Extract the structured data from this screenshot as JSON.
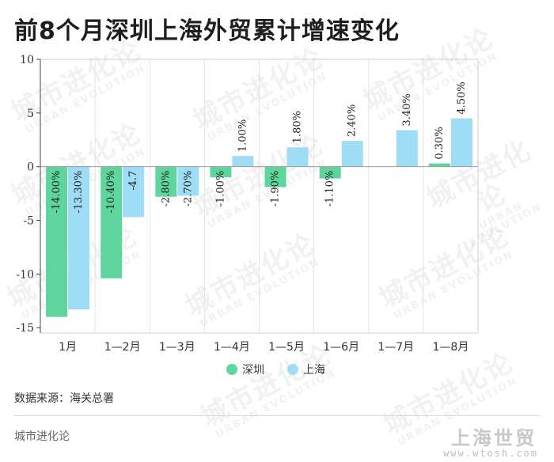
{
  "title": "前8个月深圳上海外贸累计增速变化",
  "source": "数据来源：海关总署",
  "brand": "城市进化论",
  "site_logo": "上海世贸",
  "site_url": "www.wtosh.com",
  "watermark": {
    "cn": "城市进化论",
    "en": "URBAN EVOLUTION"
  },
  "chart_data": {
    "type": "bar",
    "categories": [
      "1月",
      "1—2月",
      "1—3月",
      "1—4月",
      "1—5月",
      "1—6月",
      "1—7月",
      "1—8月"
    ],
    "series": [
      {
        "name": "深圳",
        "color": "#5fd59e",
        "values": [
          -14.0,
          -10.4,
          -2.8,
          -1.0,
          -1.9,
          -1.1,
          0,
          0.3
        ],
        "labels": [
          "-14.00%",
          "-10.40%",
          "-2.80%",
          "-1.00%",
          "-1.90%",
          "-1.10%",
          "",
          "0.30%"
        ]
      },
      {
        "name": "上海",
        "color": "#9fdcf6",
        "values": [
          -13.3,
          -4.7,
          -2.7,
          1.0,
          1.8,
          2.4,
          3.4,
          4.5
        ],
        "labels": [
          "-13.30%",
          "-4.7",
          "-2.70%",
          "1.00%",
          "1.80%",
          "2.40%",
          "3.40%",
          "4.50%"
        ]
      }
    ],
    "yticks": [
      10,
      5,
      0,
      -5,
      -10,
      -15
    ],
    "ylim": [
      -15.5,
      10
    ],
    "legend_position": "bottom",
    "grid": "vertical"
  }
}
